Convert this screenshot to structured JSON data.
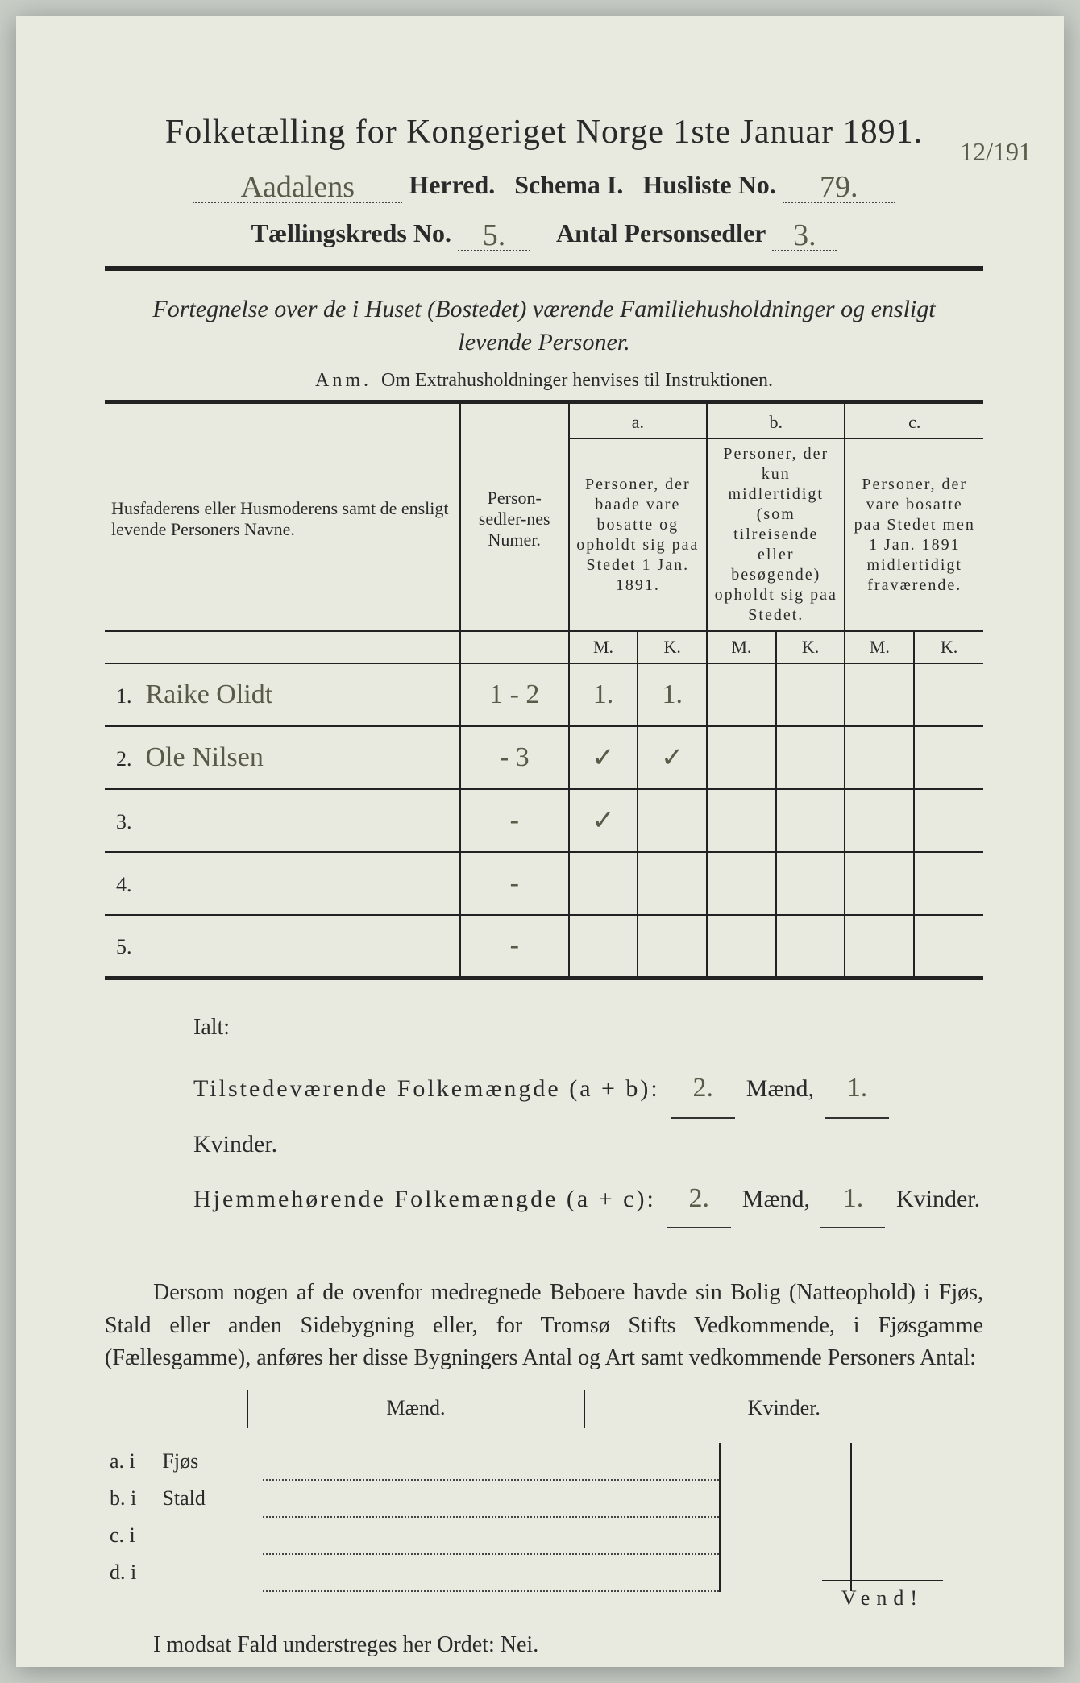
{
  "header": {
    "title": "Folketælling for Kongeriget Norge 1ste Januar 1891.",
    "herred_value": "Aadalens",
    "herred_label": "Herred.",
    "schema_label": "Schema I.",
    "husliste_label": "Husliste No.",
    "husliste_value": "79.",
    "margin_note": "12/191",
    "kreds_label": "Tællingskreds No.",
    "kreds_value": "5.",
    "antal_label": "Antal Personsedler",
    "antal_value": "3."
  },
  "subtitle": {
    "line1": "Fortegnelse over de i Huset (Bostedet) værende Familiehusholdninger og ensligt",
    "line2": "levende Personer.",
    "anm_label": "Anm.",
    "anm_text": "Om Extrahusholdninger henvises til Instruktionen."
  },
  "table": {
    "col_name": "Husfaderens eller Husmoderens samt de ensligt levende Personers Navne.",
    "col_num": "Person-sedler-nes Numer.",
    "col_a_top": "a.",
    "col_a": "Personer, der baade vare bosatte og opholdt sig paa Stedet 1 Jan. 1891.",
    "col_b_top": "b.",
    "col_b": "Personer, der kun midlertidigt (som tilreisende eller besøgende) opholdt sig paa Stedet.",
    "col_c_top": "c.",
    "col_c": "Personer, der vare bosatte paa Stedet men 1 Jan. 1891 midlertidigt fraværende.",
    "m": "M.",
    "k": "K.",
    "rows": [
      {
        "n": "1.",
        "name": "Raike Olidt",
        "num": "1 - 2",
        "am": "1.",
        "ak": "1.",
        "bm": "",
        "bk": "",
        "cm": "",
        "ck": ""
      },
      {
        "n": "2.",
        "name": "Ole Nilsen",
        "num": "- 3",
        "am": "✓",
        "ak": "✓",
        "bm": "",
        "bk": "",
        "cm": "",
        "ck": ""
      },
      {
        "n": "3.",
        "name": "",
        "num": "-",
        "am": "✓",
        "ak": "",
        "bm": "",
        "bk": "",
        "cm": "",
        "ck": ""
      },
      {
        "n": "4.",
        "name": "",
        "num": "-",
        "am": "",
        "ak": "",
        "bm": "",
        "bk": "",
        "cm": "",
        "ck": ""
      },
      {
        "n": "5.",
        "name": "",
        "num": "-",
        "am": "",
        "ak": "",
        "bm": "",
        "bk": "",
        "cm": "",
        "ck": ""
      }
    ]
  },
  "totals": {
    "ialt": "Ialt:",
    "tilst_label": "Tilstedeværende Folkemængde (a + b):",
    "tilst_m": "2.",
    "tilst_k": "1.",
    "hjem_label": "Hjemmehørende Folkemængde (a + c):",
    "hjem_m": "2.",
    "hjem_k": "1.",
    "maend": "Mænd,",
    "kvinder": "Kvinder."
  },
  "paragraph": "Dersom nogen af de ovenfor medregnede Beboere havde sin Bolig (Natteophold) i Fjøs, Stald eller anden Sidebygning eller, for Tromsø Stifts Vedkommende, i Fjøsgamme (Fællesgamme), anføres her disse Bygningers Antal og Art samt vedkommende Personers Antal:",
  "lower": {
    "maend": "Mænd.",
    "kvinder": "Kvinder.",
    "rows": [
      {
        "lab": "a.  i",
        "txt": "Fjøs"
      },
      {
        "lab": "b.  i",
        "txt": "Stald"
      },
      {
        "lab": "c.  i",
        "txt": ""
      },
      {
        "lab": "d.  i",
        "txt": ""
      }
    ]
  },
  "nei": "I modsat Fald understreges her Ordet: Nei.",
  "vend": "Vend!",
  "colors": {
    "paper": "#e8eae0",
    "ink": "#2a2a2a",
    "handwriting": "#5a5a48",
    "background": "#c8cdc6"
  }
}
